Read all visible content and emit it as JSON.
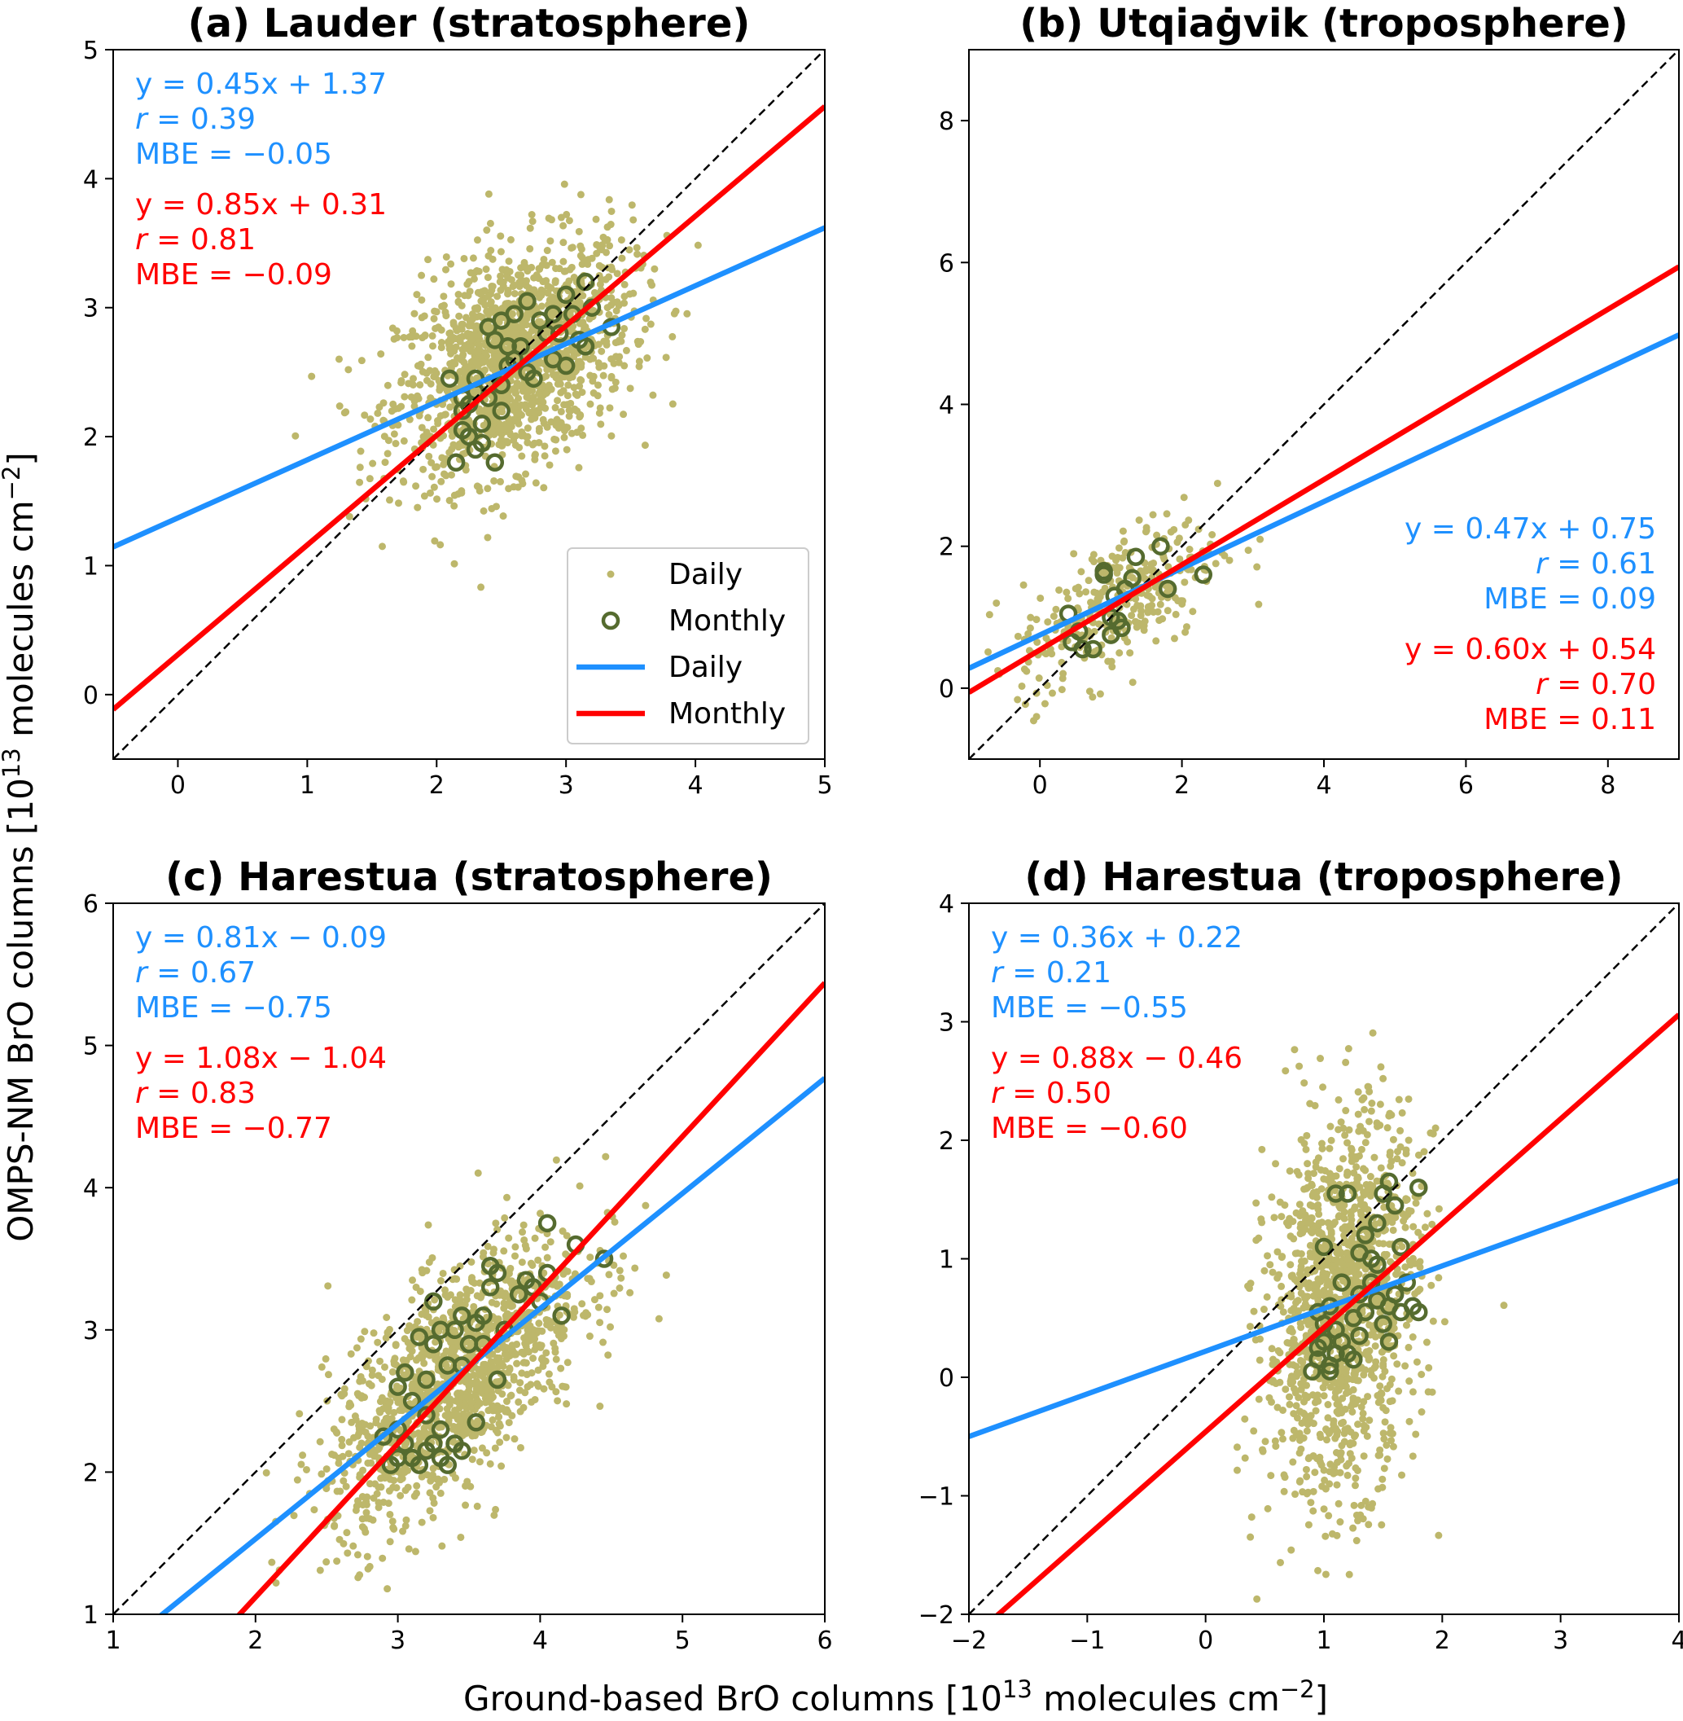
{
  "figure": {
    "ylabel_parts": [
      "OMPS-NM BrO columns [10",
      "13",
      " molecules cm",
      "−2",
      "]"
    ],
    "xlabel_parts": [
      "Ground-based BrO columns [10",
      "13",
      " molecules cm",
      "−2",
      "]"
    ]
  },
  "colors": {
    "daily_points": "#bdb76b",
    "monthly_points": "#556b2f",
    "daily_fit": "#1e90ff",
    "monthly_fit": "#ff0000",
    "one_to_one": "#000000"
  },
  "legend": {
    "placement": "lower-right (panel a)",
    "entries": [
      {
        "label": "Daily",
        "kind": "daily-point"
      },
      {
        "label": "Monthly",
        "kind": "monthly-circle"
      },
      {
        "label": "Daily",
        "kind": "daily-line"
      },
      {
        "label": "Monthly",
        "kind": "monthly-line"
      }
    ]
  },
  "chart_data": [
    {
      "type": "scatter",
      "title": "(a) Lauder (stratosphere)",
      "xlim": [
        -0.5,
        5
      ],
      "ylim": [
        -0.5,
        5
      ],
      "xticks": [
        0,
        1,
        2,
        3,
        4,
        5
      ],
      "yticks": [
        0,
        1,
        2,
        3,
        4,
        5
      ],
      "annotation_align": "top-left",
      "daily_fit": {
        "slope": 0.45,
        "intercept": 1.37,
        "eq": "y = 0.45x + 1.37",
        "r_label": "r",
        "r": " = 0.39",
        "mbe": "MBE = −0.05"
      },
      "monthly_fit": {
        "slope": 0.85,
        "intercept": 0.31,
        "eq": "y = 0.85x + 0.31",
        "r_label": "r",
        "r": " = 0.81",
        "mbe": "MBE = −0.09"
      },
      "daily_distribution": {
        "center": [
          2.6,
          2.6
        ],
        "sd": [
          0.45,
          0.45
        ],
        "corr": 0.39,
        "n": 1500
      },
      "monthly": [
        [
          2.1,
          2.45
        ],
        [
          2.2,
          2.2
        ],
        [
          2.25,
          2.0
        ],
        [
          2.3,
          1.9
        ],
        [
          2.15,
          1.8
        ],
        [
          2.45,
          1.8
        ],
        [
          2.3,
          2.45
        ],
        [
          2.4,
          2.3
        ],
        [
          2.5,
          2.2
        ],
        [
          2.35,
          2.1
        ],
        [
          2.2,
          2.05
        ],
        [
          2.6,
          2.6
        ],
        [
          2.45,
          2.75
        ],
        [
          2.4,
          2.85
        ],
        [
          2.5,
          2.9
        ],
        [
          2.6,
          2.95
        ],
        [
          2.7,
          3.05
        ],
        [
          2.8,
          2.9
        ],
        [
          2.9,
          2.95
        ],
        [
          3.0,
          3.1
        ],
        [
          3.15,
          3.2
        ],
        [
          3.05,
          2.95
        ],
        [
          3.1,
          2.75
        ],
        [
          3.35,
          2.85
        ],
        [
          2.9,
          2.6
        ],
        [
          2.75,
          2.45
        ],
        [
          3.0,
          2.55
        ],
        [
          2.55,
          2.55
        ],
        [
          2.65,
          2.7
        ],
        [
          2.7,
          2.5
        ],
        [
          2.3,
          2.35
        ],
        [
          2.25,
          2.25
        ],
        [
          2.5,
          2.4
        ],
        [
          2.85,
          2.8
        ],
        [
          3.15,
          2.7
        ],
        [
          2.35,
          1.95
        ],
        [
          2.55,
          2.7
        ],
        [
          2.2,
          2.3
        ],
        [
          2.95,
          2.8
        ],
        [
          3.2,
          3.0
        ]
      ]
    },
    {
      "type": "scatter",
      "title": "(b) Utqiaġvik (troposphere)",
      "xlim": [
        -1,
        9
      ],
      "ylim": [
        -1,
        9
      ],
      "xticks": [
        0,
        2,
        4,
        6,
        8
      ],
      "yticks": [
        0,
        2,
        4,
        6,
        8
      ],
      "annotation_align": "bottom-right",
      "daily_fit": {
        "slope": 0.47,
        "intercept": 0.75,
        "eq": "y = 0.47x + 0.75",
        "r_label": "r",
        "r": " = 0.61",
        "mbe": "MBE = 0.09"
      },
      "monthly_fit": {
        "slope": 0.6,
        "intercept": 0.54,
        "eq": "y = 0.60x + 0.54",
        "r_label": "r",
        "r": " = 0.70",
        "mbe": "MBE = 0.11"
      },
      "daily_distribution": {
        "center": [
          1.1,
          1.2
        ],
        "sd": [
          0.7,
          0.6
        ],
        "corr": 0.6,
        "n": 320
      },
      "monthly": [
        [
          0.4,
          1.05
        ],
        [
          0.45,
          0.65
        ],
        [
          0.6,
          0.55
        ],
        [
          0.75,
          0.55
        ],
        [
          0.9,
          1.6
        ],
        [
          0.9,
          1.65
        ],
        [
          1.0,
          1.0
        ],
        [
          1.0,
          0.75
        ],
        [
          1.1,
          0.95
        ],
        [
          1.05,
          1.3
        ],
        [
          1.3,
          1.55
        ],
        [
          1.35,
          1.85
        ],
        [
          1.2,
          1.4
        ],
        [
          1.7,
          2.0
        ],
        [
          1.8,
          1.4
        ],
        [
          2.3,
          1.6
        ],
        [
          0.55,
          0.8
        ],
        [
          1.15,
          0.85
        ]
      ]
    },
    {
      "type": "scatter",
      "title": "(c) Harestua (stratosphere)",
      "xlim": [
        1,
        6
      ],
      "ylim": [
        1,
        6
      ],
      "xticks": [
        1,
        2,
        3,
        4,
        5,
        6
      ],
      "yticks": [
        1,
        2,
        3,
        4,
        5,
        6
      ],
      "annotation_align": "top-left",
      "daily_fit": {
        "slope": 0.81,
        "intercept": -0.09,
        "eq": "y = 0.81x − 0.09",
        "r_label": "r",
        "r": " = 0.67",
        "mbe": "MBE = −0.75"
      },
      "monthly_fit": {
        "slope": 1.08,
        "intercept": -1.04,
        "eq": "y = 1.08x − 1.04",
        "r_label": "r",
        "r": " = 0.83",
        "mbe": "MBE = −0.77"
      },
      "daily_distribution": {
        "center": [
          3.4,
          2.65
        ],
        "sd": [
          0.45,
          0.5
        ],
        "corr": 0.67,
        "n": 1300
      },
      "monthly": [
        [
          2.95,
          2.05
        ],
        [
          3.0,
          2.1
        ],
        [
          3.05,
          2.2
        ],
        [
          3.1,
          2.1
        ],
        [
          3.15,
          2.05
        ],
        [
          3.2,
          2.15
        ],
        [
          3.25,
          2.2
        ],
        [
          3.3,
          2.1
        ],
        [
          3.35,
          2.05
        ],
        [
          3.4,
          2.2
        ],
        [
          3.45,
          2.15
        ],
        [
          2.9,
          2.25
        ],
        [
          3.0,
          2.3
        ],
        [
          3.1,
          2.5
        ],
        [
          3.2,
          2.4
        ],
        [
          3.0,
          2.6
        ],
        [
          3.05,
          2.7
        ],
        [
          3.2,
          2.65
        ],
        [
          3.25,
          2.9
        ],
        [
          3.25,
          3.2
        ],
        [
          3.3,
          3.0
        ],
        [
          3.4,
          3.0
        ],
        [
          3.45,
          2.75
        ],
        [
          3.5,
          2.9
        ],
        [
          3.55,
          3.05
        ],
        [
          3.6,
          3.1
        ],
        [
          3.65,
          3.3
        ],
        [
          3.7,
          3.4
        ],
        [
          3.75,
          3.0
        ],
        [
          3.6,
          2.9
        ],
        [
          3.7,
          2.65
        ],
        [
          3.55,
          2.35
        ],
        [
          3.85,
          3.25
        ],
        [
          3.9,
          3.35
        ],
        [
          3.95,
          3.3
        ],
        [
          4.0,
          3.2
        ],
        [
          4.05,
          3.4
        ],
        [
          4.15,
          3.1
        ],
        [
          4.05,
          3.75
        ],
        [
          4.25,
          3.6
        ],
        [
          4.45,
          3.5
        ],
        [
          3.35,
          2.75
        ],
        [
          3.15,
          2.95
        ],
        [
          3.45,
          3.1
        ],
        [
          3.3,
          2.3
        ],
        [
          3.65,
          3.45
        ]
      ]
    },
    {
      "type": "scatter",
      "title": "(d) Harestua (troposphere)",
      "xlim": [
        -2,
        4
      ],
      "ylim": [
        -2,
        4
      ],
      "xticks": [
        -2,
        -1,
        0,
        1,
        2,
        3,
        4
      ],
      "yticks": [
        -2,
        -1,
        0,
        1,
        2,
        3,
        4
      ],
      "annotation_align": "top-left",
      "daily_fit": {
        "slope": 0.36,
        "intercept": 0.22,
        "eq": "y = 0.36x + 0.22",
        "r_label": "r",
        "r": " = 0.21",
        "mbe": "MBE = −0.55"
      },
      "monthly_fit": {
        "slope": 0.88,
        "intercept": -0.46,
        "eq": "y = 0.88x − 0.46",
        "r_label": "r",
        "r": " = 0.50",
        "mbe": "MBE = −0.60"
      },
      "daily_distribution": {
        "center": [
          1.15,
          0.6
        ],
        "sd": [
          0.32,
          0.8
        ],
        "corr": 0.21,
        "n": 1300
      },
      "monthly": [
        [
          0.9,
          0.05
        ],
        [
          0.95,
          0.15
        ],
        [
          1.0,
          0.3
        ],
        [
          1.05,
          0.1
        ],
        [
          1.1,
          0.2
        ],
        [
          1.0,
          0.45
        ],
        [
          0.95,
          0.55
        ],
        [
          1.05,
          0.6
        ],
        [
          1.1,
          0.4
        ],
        [
          1.15,
          0.3
        ],
        [
          1.2,
          0.2
        ],
        [
          1.25,
          0.5
        ],
        [
          1.3,
          0.35
        ],
        [
          1.35,
          0.55
        ],
        [
          1.4,
          0.8
        ],
        [
          1.45,
          0.65
        ],
        [
          1.5,
          0.45
        ],
        [
          1.55,
          0.6
        ],
        [
          1.6,
          0.7
        ],
        [
          1.65,
          0.55
        ],
        [
          1.7,
          0.8
        ],
        [
          1.75,
          0.6
        ],
        [
          1.3,
          1.05
        ],
        [
          1.35,
          1.2
        ],
        [
          1.4,
          1.0
        ],
        [
          1.45,
          1.3
        ],
        [
          1.5,
          1.55
        ],
        [
          1.55,
          1.65
        ],
        [
          1.6,
          1.45
        ],
        [
          1.65,
          1.1
        ],
        [
          1.8,
          1.6
        ],
        [
          1.1,
          1.55
        ],
        [
          1.2,
          1.55
        ],
        [
          1.0,
          1.1
        ],
        [
          1.15,
          0.8
        ],
        [
          0.95,
          0.25
        ],
        [
          1.25,
          0.15
        ],
        [
          1.55,
          0.3
        ],
        [
          1.8,
          0.55
        ],
        [
          1.45,
          0.95
        ],
        [
          1.05,
          0.05
        ],
        [
          1.3,
          0.7
        ]
      ]
    }
  ]
}
